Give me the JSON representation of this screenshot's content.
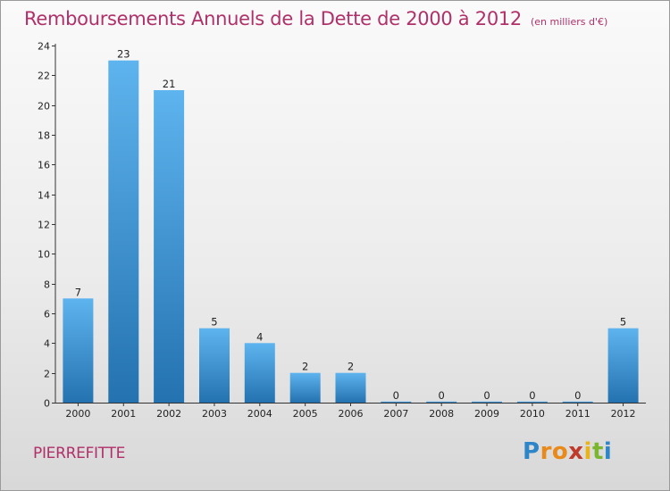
{
  "header": {
    "title": "Remboursements Annuels de la Dette de 2000 à 2012",
    "subtitle": "(en milliers d'€)"
  },
  "footer": {
    "commune": "PIERREFITTE",
    "logo_letters": [
      "P",
      "r",
      "o",
      "x",
      "i",
      "t",
      "i"
    ],
    "logo_colors": [
      "#2e86c8",
      "#e8891a",
      "#e8891a",
      "#c03a2b",
      "#e8b41a",
      "#7cb62e",
      "#2e86c8"
    ]
  },
  "colors": {
    "bar_light": "#5eb4ee",
    "bar_dark": "#2472b0",
    "title": "#b0306a"
  },
  "chart_data": {
    "type": "bar",
    "title": "Remboursements Annuels de la Dette de 2000 à 2012",
    "subtitle": "(en milliers d'€)",
    "categories": [
      "2000",
      "2001",
      "2002",
      "2003",
      "2004",
      "2005",
      "2006",
      "2007",
      "2008",
      "2009",
      "2010",
      "2011",
      "2012"
    ],
    "values": [
      7,
      23,
      21,
      5,
      4,
      2,
      2,
      0,
      0,
      0,
      0,
      0,
      5
    ],
    "ylim": [
      0,
      24
    ],
    "yticks": [
      0,
      2,
      4,
      6,
      8,
      10,
      12,
      14,
      16,
      18,
      20,
      22,
      24
    ],
    "xlabel": "",
    "ylabel": "",
    "grid": false
  }
}
